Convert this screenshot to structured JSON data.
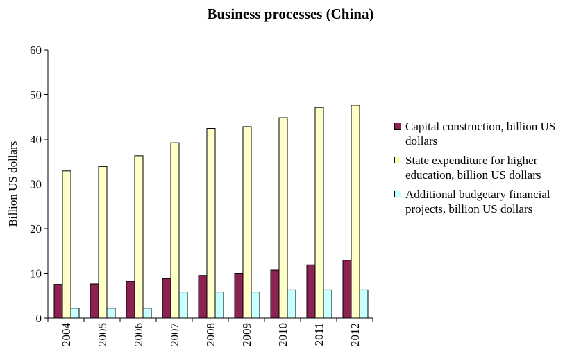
{
  "chart_data": {
    "type": "bar",
    "title": "Business processes (China)",
    "xlabel": "",
    "ylabel": "Billion US dollars",
    "ylim": [
      0,
      60
    ],
    "yticks": [
      "0",
      "10",
      "20",
      "30",
      "40",
      "50",
      "60"
    ],
    "categories": [
      "2004",
      "2005",
      "2006",
      "2007",
      "2008",
      "2009",
      "2010",
      "2011",
      "2012"
    ],
    "series": [
      {
        "name": "Capital construction, billion US dollars",
        "color": "#8b2252",
        "values": [
          7.5,
          7.6,
          8.2,
          8.8,
          9.5,
          10.0,
          10.7,
          11.9,
          12.9
        ]
      },
      {
        "name": "State expenditure for higher education, billion US dollars",
        "color": "#ffffc8",
        "values": [
          32.9,
          33.9,
          36.3,
          39.2,
          42.4,
          42.8,
          44.8,
          47.1,
          47.6
        ]
      },
      {
        "name": "Additional budgetary financial projects, billion US dollars",
        "color": "#c8ffff",
        "values": [
          2.2,
          2.2,
          2.2,
          5.8,
          5.8,
          5.8,
          6.3,
          6.3,
          6.3
        ]
      }
    ],
    "grid": false,
    "legend": "right"
  }
}
